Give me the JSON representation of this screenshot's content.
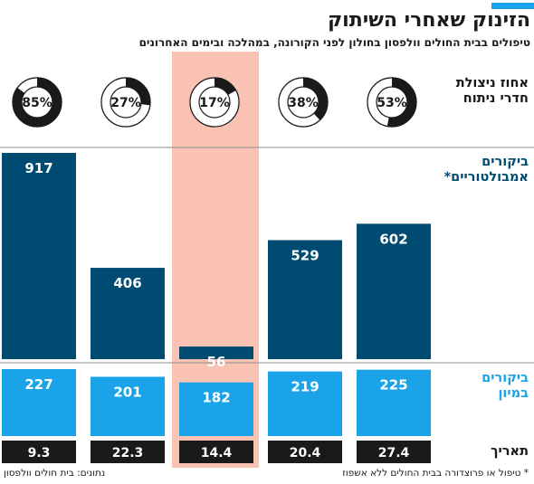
{
  "header": {
    "title": "הזינוק שאחרי השיתוק",
    "subtitle": "טיפולים בבית החולים וולפסון בחולון לפני הקורונה, במהלכה ובימים האחרונים"
  },
  "labels": {
    "occupancy_line1": "אחוז ניצולת",
    "occupancy_line2": "חדרי ניתוח",
    "ambulatory_line1": "ביקורים",
    "ambulatory_line2": "אמבולטוריים*",
    "hospital_line1": "ביקורים",
    "hospital_line2": "במיון",
    "date": "תאריך"
  },
  "footer": {
    "note": "* טיפול או פרוצדורה בבית החולים ללא אשפוז",
    "source": "נתונים: בית חולים וולפסון"
  },
  "colors": {
    "dark_blue": "#004b72",
    "light_blue": "#1aa3e8",
    "highlight": "#fac2b3",
    "date_bar": "#1a1a1a"
  },
  "chart_data": {
    "type": "bar",
    "categories": [
      "9.3",
      "22.3",
      "14.4",
      "20.4",
      "27.4"
    ],
    "highlight_index": 2,
    "occupancy": [
      85,
      27,
      17,
      38,
      53
    ],
    "occupancy_labels": [
      "85%",
      "27%",
      "17%",
      "38%",
      "53%"
    ],
    "ambulatory": [
      917,
      406,
      56,
      529,
      602
    ],
    "hospital": [
      227,
      201,
      182,
      219,
      225
    ]
  }
}
